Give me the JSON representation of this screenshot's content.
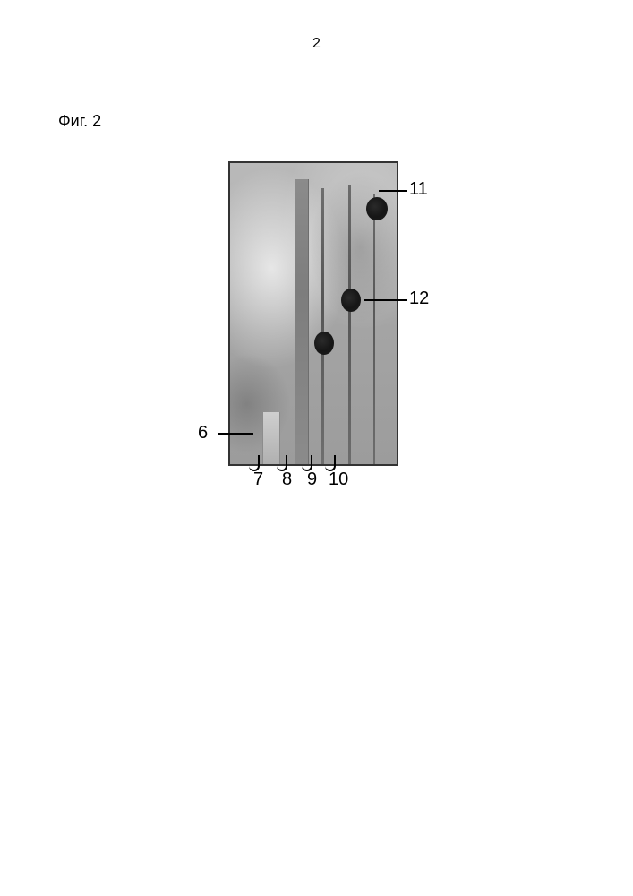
{
  "page_number": "2",
  "caption": "Фиг. 2",
  "figure": {
    "type": "diagram",
    "background_color": "#b0b0b0",
    "border_color": "#333333",
    "lanes": {
      "lane8_color": "#7d7d7d",
      "lane9_color": "#555555",
      "lane10_color": "#555555",
      "lane11_color": "#585858"
    },
    "spots": {
      "spot_color": "#1a1a1a"
    }
  },
  "labels": {
    "l6": "6",
    "l7": "7",
    "l8": "8",
    "l9": "9",
    "l10": "10",
    "l11": "11",
    "l12": "12"
  }
}
